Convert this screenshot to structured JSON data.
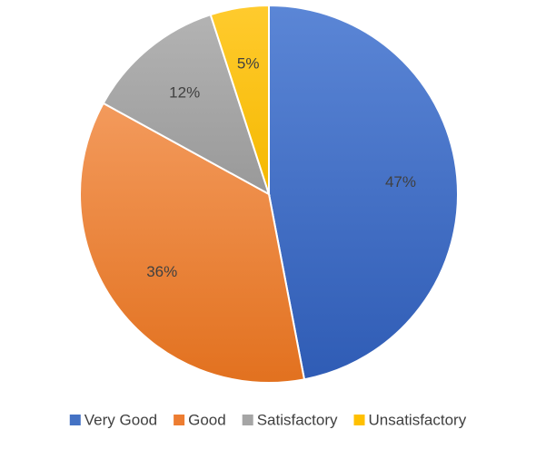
{
  "chart_data": {
    "type": "pie",
    "categories": [
      "Very Good",
      "Good",
      "Satisfactory",
      "Unsatisfactory"
    ],
    "values": [
      47,
      36,
      12,
      5
    ],
    "value_labels": [
      "47%",
      "36%",
      "12%",
      "5%"
    ],
    "colors": [
      "#4472C4",
      "#ED7D31",
      "#A5A5A5",
      "#FFC000"
    ],
    "legend_position": "bottom",
    "start_angle": "12 o'clock",
    "direction": "clockwise"
  }
}
